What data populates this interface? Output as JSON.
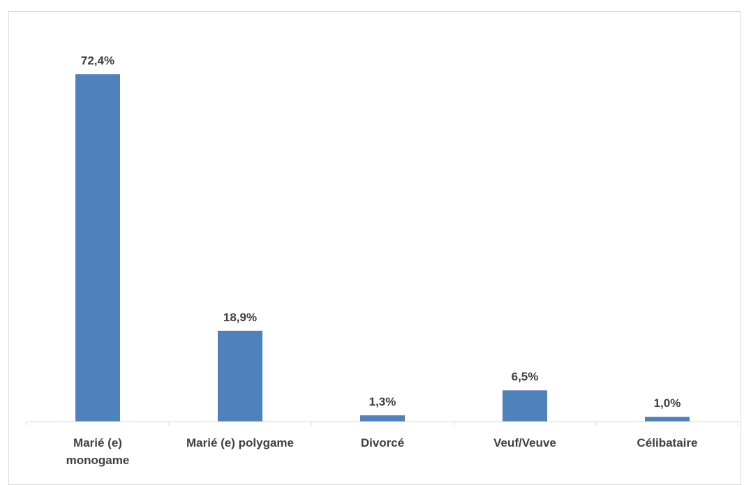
{
  "chart_data": {
    "type": "bar",
    "categories": [
      [
        "Marié (e)",
        "monogame"
      ],
      [
        "Marié (e) polygame"
      ],
      [
        "Divorcé"
      ],
      [
        "Veuf/Veuve"
      ],
      [
        "Célibataire"
      ]
    ],
    "values": [
      72.4,
      18.9,
      1.3,
      6.5,
      1.0
    ],
    "value_labels": [
      "72,4%",
      "18,9%",
      "1,3%",
      "6,5%",
      "1,0%"
    ],
    "title": "",
    "xlabel": "",
    "ylabel": "",
    "ylim": [
      0,
      80
    ],
    "grid": false,
    "legend": "none",
    "bar_color": "#4f81bd",
    "axis_color": "#d9d9d9",
    "text_color": "#404040"
  }
}
